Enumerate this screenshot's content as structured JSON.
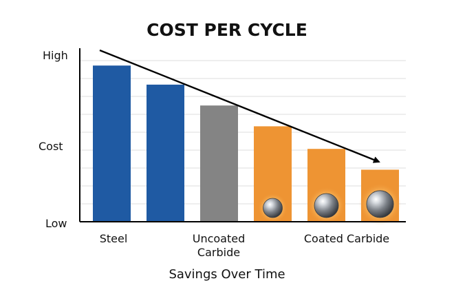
{
  "chart_data": {
    "type": "bar",
    "title": "COST PER CYCLE",
    "xlabel": "Savings Over Time",
    "ylabel": "Cost",
    "y_tick_labels": {
      "top": "High",
      "middle": "Cost",
      "bottom": "Low"
    },
    "ylim": [
      0,
      100
    ],
    "grid": true,
    "categories": [
      "Steel",
      "Steel",
      "Uncoated Carbide",
      "Coated Carbide",
      "Coated Carbide",
      "Coated Carbide"
    ],
    "category_labels": [
      {
        "text": "Steel",
        "bar_index": 0
      },
      {
        "text": "Uncoated Carbide",
        "lines": [
          "Uncoated",
          "Carbide"
        ],
        "bar_index": 2
      },
      {
        "text": "Coated Carbide",
        "bar_index": 4
      }
    ],
    "values": [
      90,
      79,
      67,
      55,
      42,
      30
    ],
    "bar_colors": [
      "#1f5aa3",
      "#1f5aa3",
      "#848484",
      "#ee9433",
      "#ee9433",
      "#ee9433"
    ],
    "ball_scale": [
      0,
      0,
      0,
      1,
      1.25,
      1.4
    ],
    "trend_arrow": {
      "direction": "down-right",
      "color": "#000000"
    }
  }
}
